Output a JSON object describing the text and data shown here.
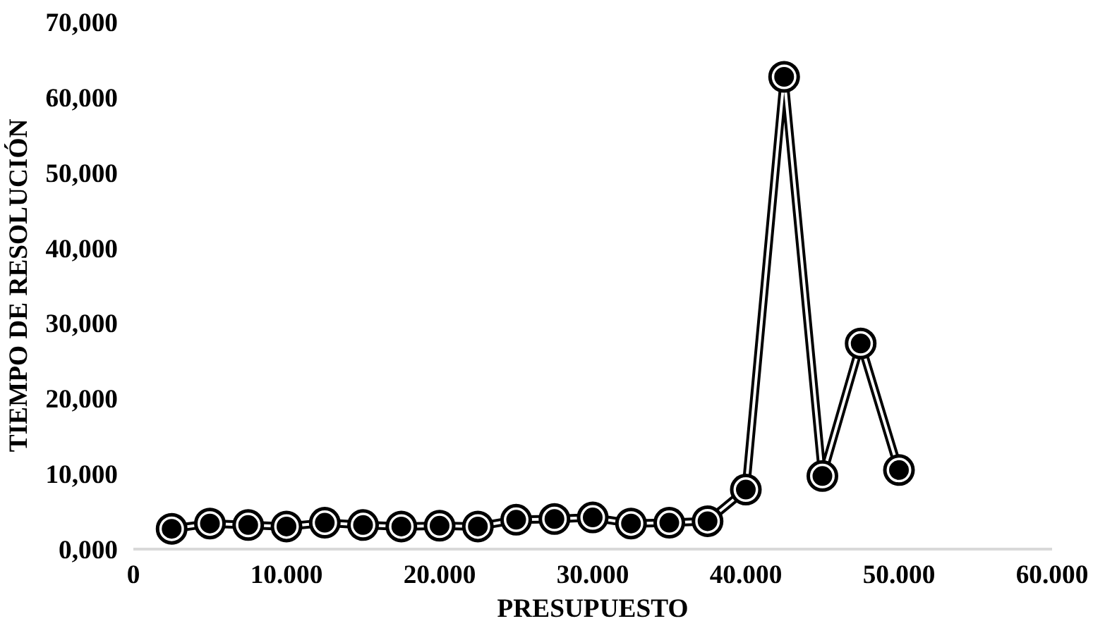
{
  "chart_data": {
    "type": "line",
    "xlabel": "PRESUPUESTO",
    "ylabel": "TIEMPO DE RESOLUCIÓN",
    "x": [
      2500,
      5000,
      7500,
      10000,
      12500,
      15000,
      17500,
      20000,
      22500,
      25000,
      27500,
      30000,
      32500,
      35000,
      37500,
      40000,
      42500,
      45000,
      47500,
      50000
    ],
    "series": [
      {
        "color": "#000000",
        "values": [
          2.7,
          3.4,
          3.2,
          3.0,
          3.5,
          3.2,
          3.0,
          3.1,
          3.0,
          3.9,
          4.0,
          4.2,
          3.4,
          3.5,
          3.7,
          7.9,
          62.7,
          9.7,
          27.3,
          10.5
        ]
      }
    ],
    "xlim": [
      0,
      60000
    ],
    "xticks": [
      0,
      {
        "value": 10000,
        "label": "10.000"
      },
      {
        "value": 20000,
        "label": "20.000"
      },
      {
        "value": 30000,
        "label": "30.000"
      },
      {
        "value": 40000,
        "label": "40.000"
      },
      {
        "value": 50000,
        "label": "50.000"
      },
      {
        "value": 60000,
        "label": "60.000"
      }
    ],
    "ylim": [
      0,
      70
    ],
    "yticks": [
      {
        "value": 0,
        "label": "0,000"
      },
      {
        "value": 10,
        "label": "10,000"
      },
      {
        "value": 20,
        "label": "20,000"
      },
      {
        "value": 30,
        "label": "30,000"
      },
      {
        "value": 40,
        "label": "40,000"
      },
      {
        "value": 50,
        "label": "50,000"
      },
      {
        "value": 60,
        "label": "60,000"
      },
      {
        "value": 70,
        "label": "70,000"
      }
    ],
    "grid": false,
    "marker": "circle",
    "line_style": "solid"
  }
}
